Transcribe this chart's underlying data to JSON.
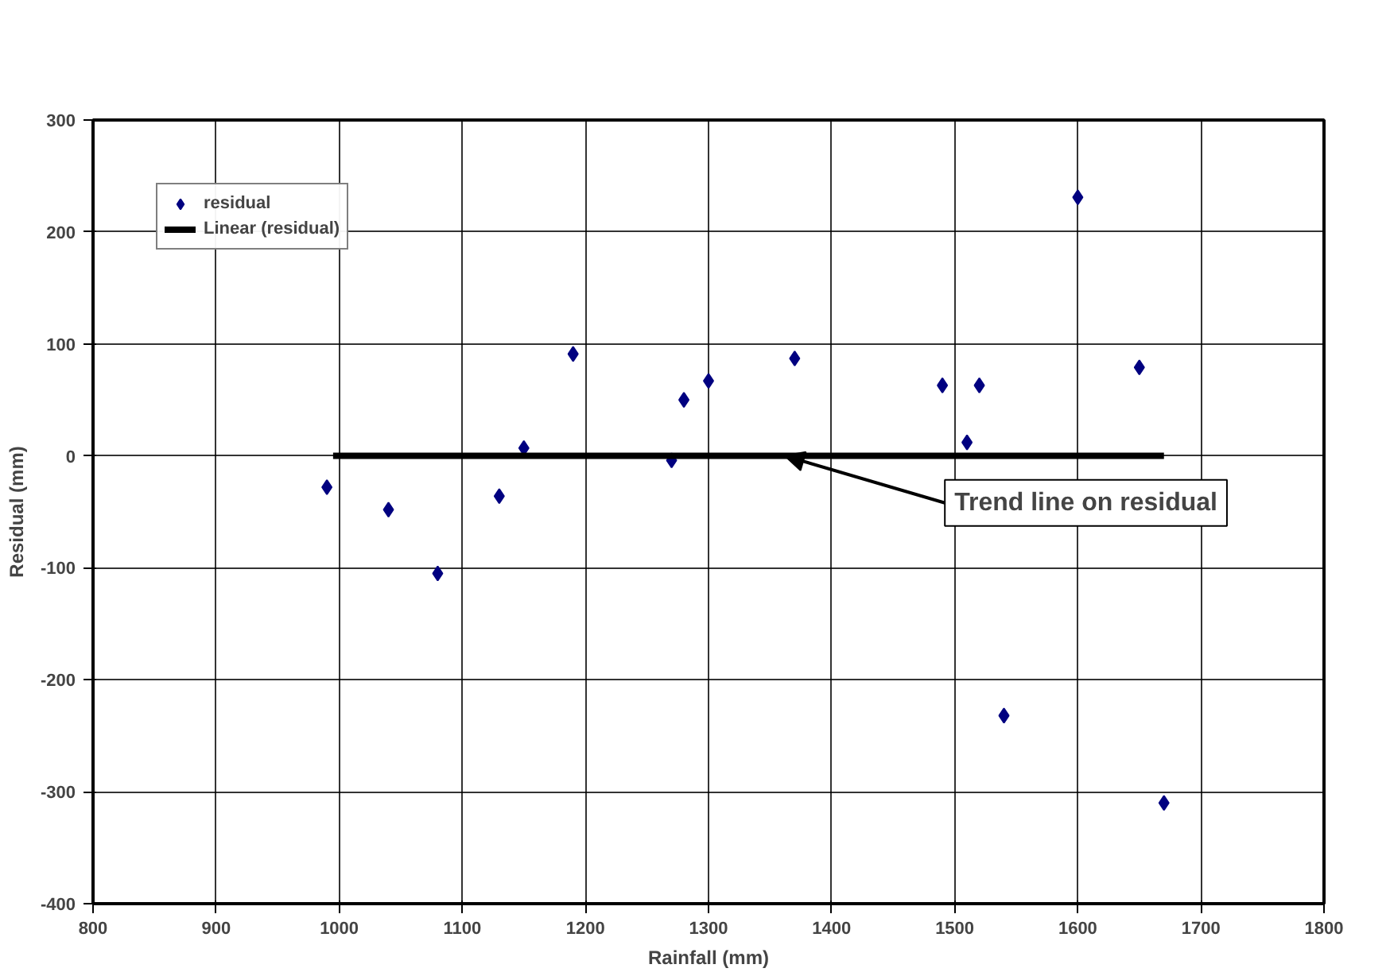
{
  "chart_data": {
    "type": "scatter",
    "xlabel": "Rainfall (mm)",
    "ylabel": "Residual (mm)",
    "series": [
      {
        "name": "residual",
        "color": "#000080",
        "marker": "diamond",
        "x": [
          990,
          1040,
          1080,
          1130,
          1150,
          1190,
          1270,
          1280,
          1300,
          1370,
          1490,
          1510,
          1520,
          1540,
          1600,
          1650,
          1670
        ],
        "values": [
          -28,
          -48,
          -105,
          -36,
          7,
          91,
          -4,
          50,
          67,
          87,
          63,
          12,
          63,
          -232,
          231,
          79,
          -310
        ]
      },
      {
        "name": "Linear (residual)",
        "type": "line",
        "color": "#000000",
        "line_style": "solid",
        "x": [
          995,
          1670
        ],
        "values": [
          0,
          0
        ]
      }
    ],
    "xlim": [
      800,
      1800
    ],
    "xticks": [
      800,
      900,
      1000,
      1100,
      1200,
      1300,
      1400,
      1500,
      1600,
      1700,
      1800
    ],
    "ylim": [
      -400,
      300
    ],
    "yticks": [
      -400,
      -300,
      -200,
      -100,
      0,
      100,
      200,
      300
    ],
    "grid": true,
    "legend": "top left",
    "annotations": [
      {
        "text": "Trend line on residual",
        "x": 1362,
        "y": 0
      }
    ]
  }
}
